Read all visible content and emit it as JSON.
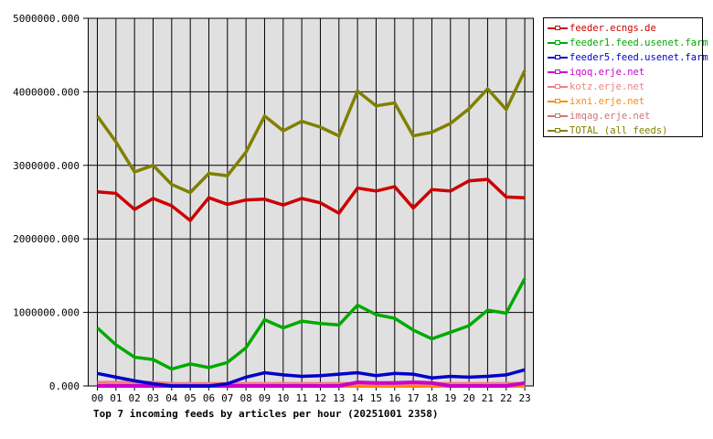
{
  "chart_data": {
    "type": "line",
    "title": "Top 7 incoming feeds by articles per hour (20251001 2358)",
    "xlabel": "",
    "ylabel": "",
    "ylim": [
      0,
      5000000
    ],
    "grid": true,
    "legend_position": "right",
    "yticks": [
      "0.000",
      "1000000.000",
      "2000000.000",
      "3000000.000",
      "4000000.000",
      "5000000.000"
    ],
    "categories": [
      "00",
      "01",
      "02",
      "03",
      "04",
      "05",
      "06",
      "07",
      "08",
      "09",
      "10",
      "11",
      "12",
      "13",
      "14",
      "15",
      "16",
      "17",
      "18",
      "19",
      "20",
      "21",
      "22",
      "23"
    ],
    "series": [
      {
        "name": "feeder.ecngs.de",
        "color": "#cc0000",
        "values": [
          2640000,
          2620000,
          2400000,
          2550000,
          2450000,
          2250000,
          2560000,
          2470000,
          2530000,
          2540000,
          2460000,
          2550000,
          2490000,
          2350000,
          2690000,
          2650000,
          2710000,
          2420000,
          2670000,
          2650000,
          2790000,
          2810000,
          2570000,
          2560000
        ]
      },
      {
        "name": "feeder1.feed.usenet.farm",
        "color": "#00aa00",
        "values": [
          790000,
          560000,
          390000,
          360000,
          230000,
          300000,
          250000,
          320000,
          520000,
          900000,
          790000,
          880000,
          850000,
          830000,
          1100000,
          970000,
          920000,
          760000,
          640000,
          730000,
          820000,
          1030000,
          990000,
          1460000
        ]
      },
      {
        "name": "feeder5.feed.usenet.farm",
        "color": "#0000cc",
        "values": [
          170000,
          120000,
          70000,
          30000,
          0,
          0,
          0,
          30000,
          120000,
          180000,
          150000,
          130000,
          140000,
          160000,
          180000,
          140000,
          170000,
          160000,
          110000,
          130000,
          120000,
          130000,
          150000,
          220000
        ]
      },
      {
        "name": "iqoq.erje.net",
        "color": "#cc00cc",
        "values": [
          0,
          0,
          0,
          0,
          0,
          0,
          0,
          0,
          0,
          0,
          0,
          0,
          0,
          0,
          50000,
          40000,
          40000,
          50000,
          40000,
          0,
          0,
          0,
          0,
          40000
        ]
      },
      {
        "name": "kotz.erje.net",
        "color": "#f08080",
        "values": [
          45000,
          45000,
          45000,
          45000,
          30000,
          30000,
          30000,
          30000,
          30000,
          30000,
          30000,
          30000,
          30000,
          30000,
          30000,
          30000,
          30000,
          30000,
          30000,
          30000,
          30000,
          30000,
          30000,
          30000
        ]
      },
      {
        "name": "ixni.erje.net",
        "color": "#ff8800",
        "values": [
          0,
          0,
          10000,
          10000,
          0,
          0,
          0,
          0,
          0,
          0,
          0,
          0,
          0,
          0,
          0,
          0,
          0,
          0,
          0,
          0,
          0,
          0,
          0,
          0
        ]
      },
      {
        "name": "imqag.erje.net",
        "color": "#cc7777",
        "values": [
          20000,
          20000,
          20000,
          20000,
          20000,
          20000,
          20000,
          20000,
          20000,
          20000,
          20000,
          20000,
          20000,
          20000,
          20000,
          20000,
          20000,
          20000,
          20000,
          20000,
          20000,
          20000,
          20000,
          20000
        ]
      },
      {
        "name": "TOTAL (all feeds)",
        "color": "#808000",
        "values": [
          3670000,
          3320000,
          2910000,
          3000000,
          2740000,
          2630000,
          2890000,
          2860000,
          3180000,
          3670000,
          3470000,
          3600000,
          3520000,
          3400000,
          4010000,
          3810000,
          3850000,
          3400000,
          3450000,
          3570000,
          3770000,
          4040000,
          3760000,
          4290000
        ]
      }
    ]
  },
  "legend": {
    "items": [
      {
        "label": "feeder.ecngs.de",
        "color": "#cc0000"
      },
      {
        "label": "feeder1.feed.usenet.farm",
        "color": "#00aa00"
      },
      {
        "label": "feeder5.feed.usenet.farm",
        "color": "#0000cc"
      },
      {
        "label": "iqoq.erje.net",
        "color": "#cc00cc"
      },
      {
        "label": "kotz.erje.net",
        "color": "#f08080"
      },
      {
        "label": "ixni.erje.net",
        "color": "#ff8800"
      },
      {
        "label": "imqag.erje.net",
        "color": "#cc7777"
      },
      {
        "label": "TOTAL (all feeds)",
        "color": "#808000"
      }
    ]
  },
  "plot": {
    "background": "#e0e0e0",
    "grid_color": "#000000"
  }
}
